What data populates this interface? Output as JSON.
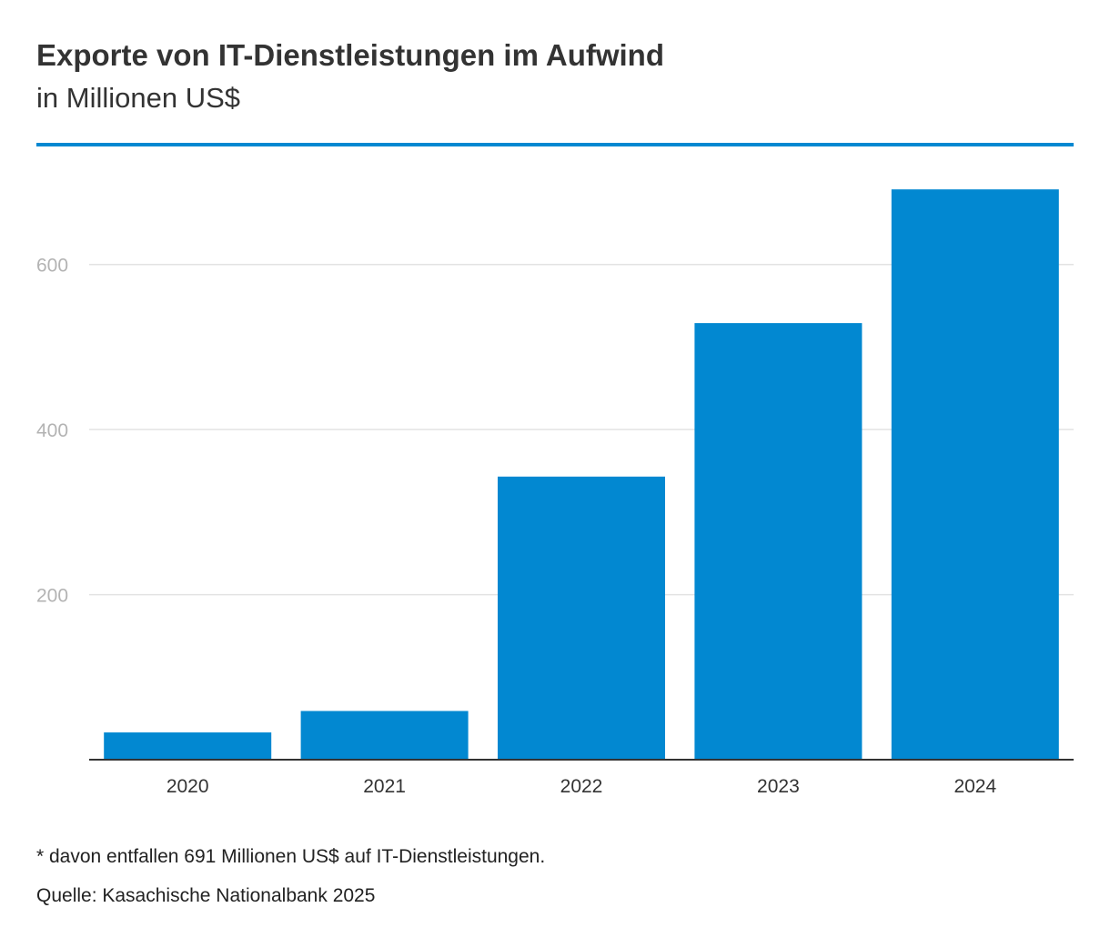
{
  "chart_data": {
    "type": "bar",
    "title": "Exporte von IT-Dienstleistungen im Aufwind",
    "subtitle": "in Millionen US$",
    "xlabel": "",
    "ylabel": "",
    "categories": [
      "2020",
      "2021",
      "2022",
      "2023",
      "2024"
    ],
    "values": [
      33,
      59,
      343,
      529,
      691
    ],
    "ylim": [
      0,
      700
    ],
    "yticks": [
      200,
      400,
      600
    ],
    "ytick_labels": [
      "200",
      "400",
      "600"
    ],
    "grid": true,
    "bar_color": "#0288d1",
    "grid_color": "#e3e3e3",
    "axis_color": "#333333",
    "tick_label_color": "#b3b3b3",
    "accent_color": "#0288d1"
  },
  "footnote": "* davon entfallen 691 Millionen US$ auf IT-Dienstleistungen.",
  "source": "Quelle: Kasachische Nationalbank 2025"
}
